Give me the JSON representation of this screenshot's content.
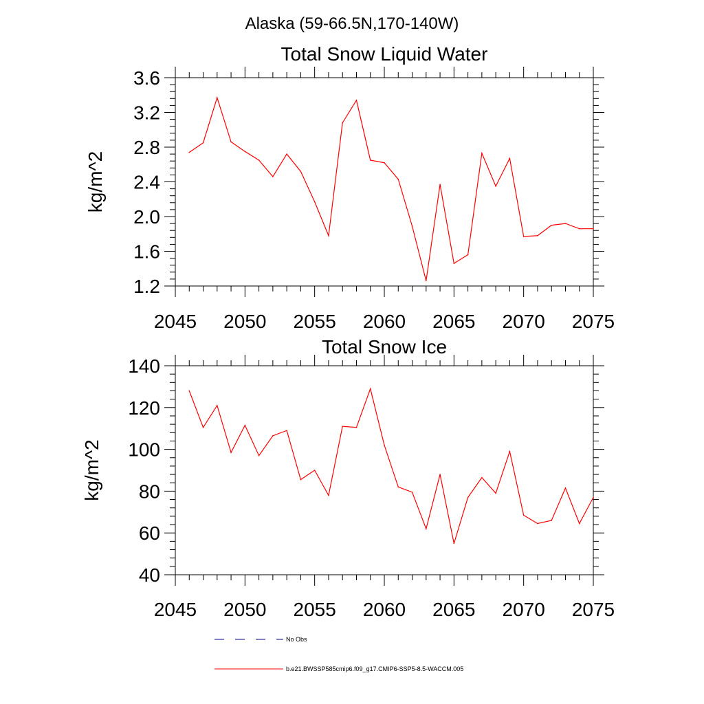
{
  "page_title": "Alaska (59-66.5N,170-140W)",
  "chart_data": [
    {
      "type": "line",
      "title": "Total Snow Liquid Water",
      "xlabel": "",
      "ylabel": "kg/m^2",
      "xlim": [
        2045,
        2075
      ],
      "ylim": [
        1.2,
        3.6
      ],
      "xticks": [
        2045,
        2050,
        2055,
        2060,
        2065,
        2070,
        2075
      ],
      "yticks": [
        1.2,
        1.6,
        2.0,
        2.4,
        2.8,
        3.2,
        3.6
      ],
      "ytick_labels": [
        "1.2",
        "1.6",
        "2.0",
        "2.4",
        "2.8",
        "3.2",
        "3.6"
      ],
      "grid": false,
      "x": [
        2046,
        2047,
        2048,
        2049,
        2050,
        2051,
        2052,
        2053,
        2054,
        2055,
        2056,
        2057,
        2058,
        2059,
        2060,
        2061,
        2062,
        2063,
        2064,
        2065,
        2066,
        2067,
        2068,
        2069,
        2070,
        2071,
        2072,
        2073,
        2074,
        2075
      ],
      "series": [
        {
          "name": "b.e21.BWSSP585cmip6.f09_g17.CMIP6-SSP5-8.5-WACCM.005",
          "color": "#ff0000",
          "values": [
            2.74,
            2.85,
            3.37,
            2.86,
            2.75,
            2.65,
            2.46,
            2.72,
            2.52,
            2.17,
            1.78,
            3.08,
            3.34,
            2.65,
            2.62,
            2.43,
            1.89,
            1.26,
            2.37,
            1.46,
            1.56,
            2.73,
            2.35,
            2.67,
            1.77,
            1.78,
            1.9,
            1.92,
            1.86,
            1.86
          ]
        }
      ]
    },
    {
      "type": "line",
      "title": "Total Snow Ice",
      "xlabel": "",
      "ylabel": "kg/m^2",
      "xlim": [
        2045,
        2075
      ],
      "ylim": [
        40,
        140
      ],
      "xticks": [
        2045,
        2050,
        2055,
        2060,
        2065,
        2070,
        2075
      ],
      "yticks": [
        40,
        60,
        80,
        100,
        120,
        140
      ],
      "ytick_labels": [
        "40",
        "60",
        "80",
        "100",
        "120",
        "140"
      ],
      "grid": false,
      "x": [
        2046,
        2047,
        2048,
        2049,
        2050,
        2051,
        2052,
        2053,
        2054,
        2055,
        2056,
        2057,
        2058,
        2059,
        2060,
        2061,
        2062,
        2063,
        2064,
        2065,
        2066,
        2067,
        2068,
        2069,
        2070,
        2071,
        2072,
        2073,
        2074,
        2075
      ],
      "series": [
        {
          "name": "b.e21.BWSSP585cmip6.f09_g17.CMIP6-SSP5-8.5-WACCM.005",
          "color": "#ff0000",
          "values": [
            128.0,
            110.5,
            121.0,
            98.5,
            111.5,
            97.0,
            106.5,
            109.0,
            85.5,
            90.0,
            78.0,
            111.0,
            110.5,
            129.0,
            102.0,
            82.0,
            79.5,
            62.0,
            88.0,
            55.0,
            77.0,
            86.5,
            79.0,
            99.0,
            68.5,
            64.5,
            66.0,
            81.5,
            64.5,
            77.0
          ]
        }
      ]
    }
  ],
  "legend": [
    {
      "label": "No Obs",
      "color": "#000080",
      "style": "dashed"
    },
    {
      "label": "b.e21.BWSSP585cmip6.f09_g17.CMIP6-SSP5-8.5-WACCM.005",
      "color": "#ff0000",
      "style": "solid"
    }
  ]
}
